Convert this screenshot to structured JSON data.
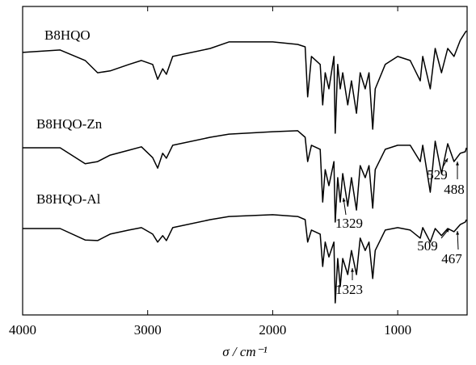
{
  "chart_data": {
    "type": "line",
    "x_label": "σ / cm⁻¹",
    "x": [
      4000,
      3700,
      3500,
      3400,
      3300,
      3150,
      3050,
      2960,
      2920,
      2880,
      2850,
      2800,
      2500,
      2350,
      2000,
      1800,
      1740,
      1720,
      1690,
      1620,
      1600,
      1580,
      1550,
      1510,
      1500,
      1480,
      1460,
      1440,
      1400,
      1370,
      1330,
      1300,
      1260,
      1230,
      1200,
      1180,
      1100,
      1000,
      900,
      820,
      800,
      740,
      700,
      650,
      600,
      550,
      500,
      460,
      450
    ],
    "series": [
      {
        "name": "B8HQO",
        "color": "#000000",
        "values": [
          85.1,
          85.9,
          82.5,
          78.5,
          79.1,
          81.2,
          82.5,
          81.2,
          76.4,
          79.8,
          78.0,
          83.8,
          86.4,
          88.5,
          88.5,
          87.7,
          86.9,
          70.7,
          83.8,
          81.2,
          68.1,
          78.5,
          73.3,
          83.8,
          58.9,
          81.2,
          73.3,
          78.5,
          68.1,
          75.9,
          65.4,
          78.5,
          73.3,
          78.5,
          60.2,
          73.3,
          81.2,
          83.8,
          82.5,
          75.9,
          83.8,
          73.3,
          86.4,
          78.5,
          86.4,
          83.8,
          89.0,
          91.6,
          92.1
        ]
      },
      {
        "name": "B8HQO-Zn",
        "color": "#000000",
        "values": [
          54.2,
          54.2,
          49.0,
          49.7,
          51.8,
          53.4,
          54.5,
          51.0,
          47.6,
          52.4,
          50.8,
          55.0,
          57.6,
          58.6,
          59.4,
          59.7,
          57.6,
          49.7,
          55.0,
          53.7,
          36.6,
          47.1,
          41.9,
          49.7,
          30.1,
          44.5,
          36.6,
          45.8,
          35.3,
          44.5,
          34.0,
          48.4,
          44.5,
          48.4,
          34.6,
          47.1,
          53.7,
          55.0,
          55.0,
          49.7,
          55.0,
          39.8,
          56.3,
          45.8,
          55.5,
          49.7,
          52.4,
          52.9,
          54.2
        ]
      },
      {
        "name": "B8HQO-Al",
        "color": "#000000",
        "values": [
          28.0,
          28.0,
          24.3,
          24.1,
          26.2,
          27.5,
          28.3,
          26.2,
          23.6,
          25.7,
          24.1,
          28.3,
          30.9,
          31.9,
          32.5,
          31.9,
          30.9,
          23.6,
          27.5,
          26.2,
          15.7,
          23.6,
          18.8,
          23.6,
          3.9,
          18.3,
          9.2,
          18.3,
          13.1,
          20.9,
          13.1,
          24.9,
          20.9,
          23.6,
          11.8,
          20.9,
          27.5,
          28.3,
          27.5,
          24.9,
          28.3,
          23.6,
          28.0,
          25.7,
          28.0,
          27.0,
          29.3,
          30.1,
          30.9
        ]
      }
    ],
    "annotations": [
      "1329",
      "529",
      "488",
      "1323",
      "509",
      "467"
    ],
    "xlim": [
      4000,
      445
    ],
    "ylim": [
      0,
      100
    ],
    "xticks": [
      4000,
      3000,
      2000,
      1000
    ]
  }
}
